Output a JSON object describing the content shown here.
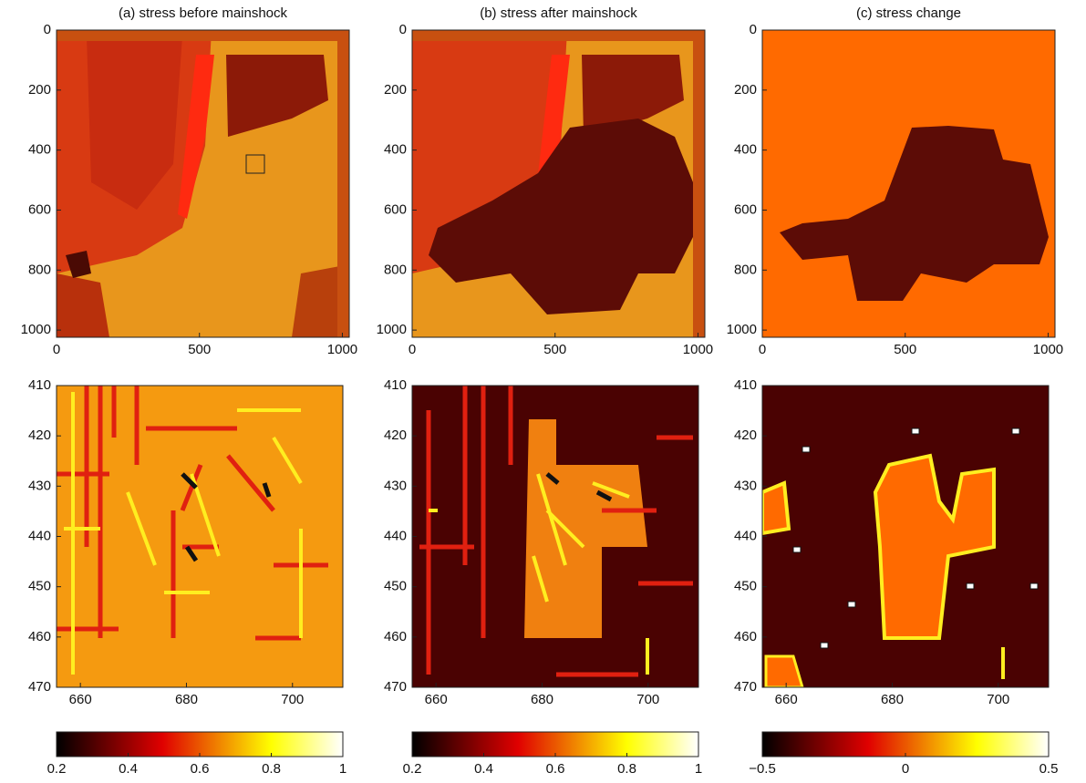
{
  "chart_data": [
    {
      "type": "image",
      "title": "(a) stress before mainshock",
      "xlim": [
        0,
        1024
      ],
      "xticks": [
        0,
        500,
        1000
      ],
      "ylim": [
        0,
        1024
      ],
      "yticks": [
        0,
        200,
        400,
        600,
        800,
        1000
      ],
      "y_reverse": true
    },
    {
      "type": "image",
      "title": "(b) stress after mainshock",
      "xlim": [
        0,
        1024
      ],
      "xticks": [
        0,
        500,
        1000
      ],
      "ylim": [
        0,
        1024
      ],
      "yticks": [
        0,
        200,
        400,
        600,
        800,
        1000
      ],
      "y_reverse": true
    },
    {
      "type": "image",
      "title": "(c) stress change",
      "xlim": [
        0,
        1024
      ],
      "xticks": [
        0,
        500,
        1000
      ],
      "ylim": [
        0,
        1024
      ],
      "yticks": [
        0,
        200,
        400,
        600,
        800,
        1000
      ],
      "y_reverse": true
    },
    {
      "type": "image",
      "xlim": [
        655.5,
        709.5
      ],
      "xticks": [
        660,
        680,
        700
      ],
      "ylim": [
        410,
        470
      ],
      "yticks": [
        410,
        420,
        430,
        440,
        450,
        460,
        470
      ],
      "y_reverse": true,
      "colorbar": {
        "lim": [
          0.2,
          1
        ],
        "ticks": [
          0.2,
          0.4,
          0.6,
          0.8,
          1
        ]
      }
    },
    {
      "type": "image",
      "xlim": [
        655.5,
        709.5
      ],
      "xticks": [
        660,
        680,
        700
      ],
      "ylim": [
        410,
        470
      ],
      "yticks": [
        410,
        420,
        430,
        440,
        450,
        460,
        470
      ],
      "y_reverse": true,
      "colorbar": {
        "lim": [
          0.2,
          1
        ],
        "ticks": [
          0.2,
          0.4,
          0.6,
          0.8,
          1
        ]
      }
    },
    {
      "type": "image",
      "xlim": [
        655.5,
        709.5
      ],
      "xticks": [
        660,
        680,
        700
      ],
      "ylim": [
        410,
        470
      ],
      "yticks": [
        410,
        420,
        430,
        440,
        450,
        460,
        470
      ],
      "y_reverse": true,
      "colorbar": {
        "lim": [
          -0.5,
          0.5
        ],
        "ticks": [
          {
            "value": -0.5,
            "label": "−0.5"
          },
          0,
          0.5
        ]
      }
    }
  ]
}
